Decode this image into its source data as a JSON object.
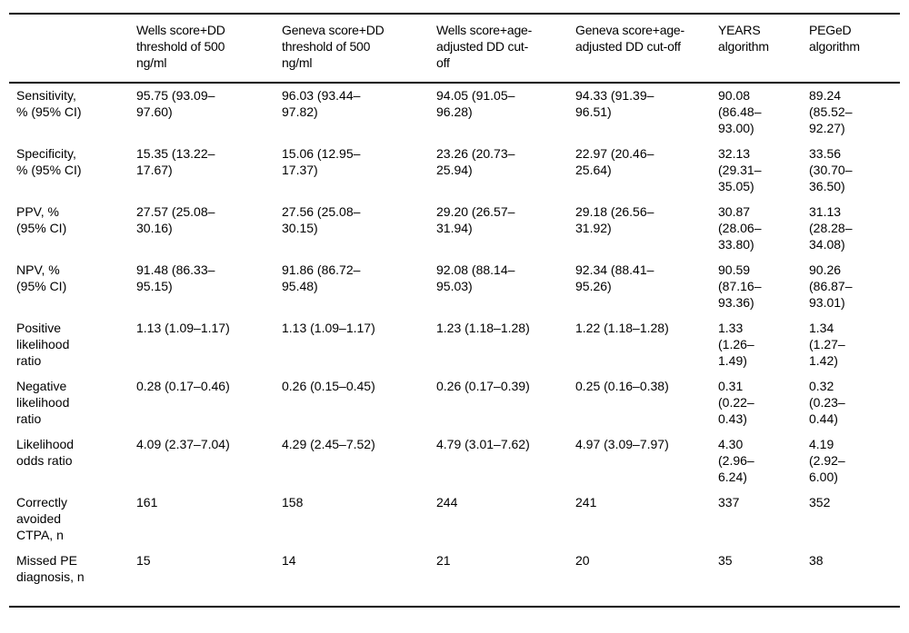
{
  "colors": {
    "background": "#ffffff",
    "text": "#000000",
    "rule": "#000000"
  },
  "chart_data": {
    "type": "table",
    "columns": [
      "",
      "Wells score+DD threshold of 500 ng/ml",
      "Geneva score+DD threshold of 500 ng/ml",
      "Wells score+age-adjusted DD cut-off",
      "Geneva score+age-adjusted DD cut-off",
      "YEARS algorithm",
      "PEGeD algorithm"
    ],
    "rows": [
      {
        "label": "Sensitivity, % (95% CI)",
        "values": [
          "95.75 (93.09–97.60)",
          "96.03 (93.44–97.82)",
          "94.05 (91.05–96.28)",
          "94.33 (91.39–96.51)",
          "90.08 (86.48–93.00)",
          "89.24 (85.52–92.27)"
        ]
      },
      {
        "label": "Specificity, % (95% CI)",
        "values": [
          "15.35 (13.22–17.67)",
          "15.06 (12.95–17.37)",
          "23.26 (20.73–25.94)",
          "22.97 (20.46–25.64)",
          "32.13 (29.31–35.05)",
          "33.56 (30.70–36.50)"
        ]
      },
      {
        "label": "PPV, % (95% CI)",
        "values": [
          "27.57 (25.08–30.16)",
          "27.56 (25.08–30.15)",
          "29.20 (26.57–31.94)",
          "29.18 (26.56–31.92)",
          "30.87 (28.06–33.80)",
          "31.13 (28.28–34.08)"
        ]
      },
      {
        "label": "NPV, % (95% CI)",
        "values": [
          "91.48 (86.33–95.15)",
          "91.86 (86.72–95.48)",
          "92.08 (88.14–95.03)",
          "92.34 (88.41–95.26)",
          "90.59 (87.16–93.36)",
          "90.26 (86.87–93.01)"
        ]
      },
      {
        "label": "Positive likelihood ratio",
        "values": [
          "1.13 (1.09–1.17)",
          "1.13 (1.09–1.17)",
          "1.23 (1.18–1.28)",
          "1.22 (1.18–1.28)",
          "1.33 (1.26–1.49)",
          "1.34 (1.27–1.42)"
        ]
      },
      {
        "label": "Negative likelihood ratio",
        "values": [
          "0.28 (0.17–0.46)",
          "0.26 (0.15–0.45)",
          "0.26 (0.17–0.39)",
          "0.25 (0.16–0.38)",
          "0.31 (0.22–0.43)",
          "0.32 (0.23–0.44)"
        ]
      },
      {
        "label": "Likelihood odds ratio",
        "values": [
          "4.09 (2.37–7.04)",
          "4.29 (2.45–7.52)",
          "4.79 (3.01–7.62)",
          "4.97 (3.09–7.97)",
          "4.30 (2.96–6.24)",
          "4.19 (2.92–6.00)"
        ]
      },
      {
        "label": "Correctly avoided CTPA, n",
        "values": [
          "161",
          "158",
          "244",
          "241",
          "337",
          "352"
        ]
      },
      {
        "label": "Missed PE diagnosis, n",
        "values": [
          "15",
          "14",
          "21",
          "20",
          "35",
          "38"
        ]
      }
    ]
  }
}
